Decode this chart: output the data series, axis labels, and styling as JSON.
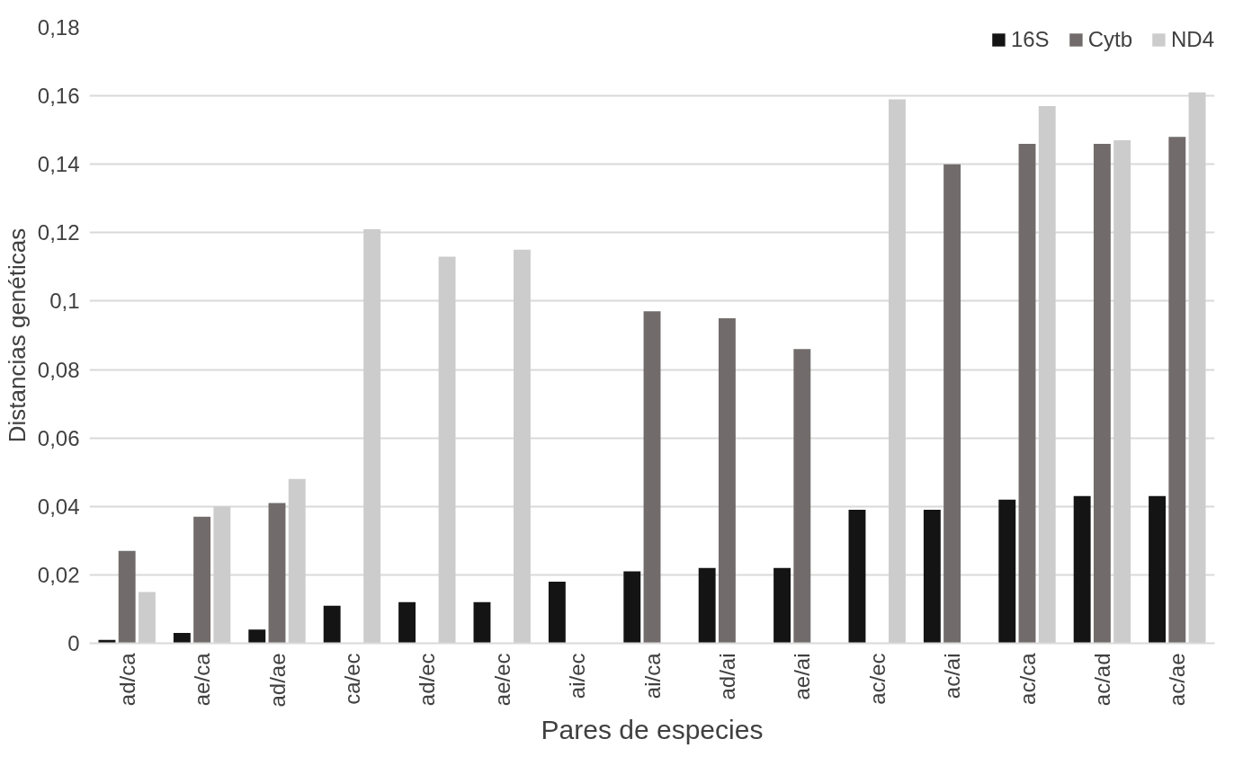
{
  "chart_data": {
    "type": "bar",
    "xlabel": "Pares de especies",
    "ylabel": "Distancias genéticas",
    "categories": [
      "ad/ca",
      "ae/ca",
      "ad/ae",
      "ca/ec",
      "ad/ec",
      "ae/ec",
      "ai/ec",
      "ai/ca",
      "ad/ai",
      "ae/ai",
      "ac/ec",
      "ac/ai",
      "ac/ca",
      "ac/ad",
      "ac/ae"
    ],
    "series": [
      {
        "name": "16S",
        "color": "#141414",
        "values": [
          0.001,
          0.003,
          0.004,
          0.011,
          0.012,
          0.012,
          0.018,
          0.021,
          0.022,
          0.022,
          0.039,
          0.039,
          0.042,
          0.043,
          0.043
        ]
      },
      {
        "name": "Cytb",
        "color": "#716c6b",
        "values": [
          0.027,
          0.037,
          0.041,
          null,
          null,
          null,
          null,
          0.097,
          0.095,
          0.086,
          null,
          0.14,
          0.146,
          0.146,
          0.148
        ]
      },
      {
        "name": "ND4",
        "color": "#cccccc",
        "values": [
          0.015,
          0.04,
          0.048,
          0.121,
          0.113,
          0.115,
          null,
          null,
          null,
          null,
          0.159,
          null,
          0.157,
          0.147,
          0.161
        ]
      }
    ],
    "ylim": [
      0,
      0.18
    ],
    "yticks": [
      0,
      {
        "value": 0.02,
        "label": "0,02"
      },
      {
        "value": 0.04,
        "label": "0,04"
      },
      {
        "value": 0.06,
        "label": "0,06"
      },
      {
        "value": 0.08,
        "label": "0,08"
      },
      {
        "value": 0.1,
        "label": "0,1"
      },
      {
        "value": 0.12,
        "label": "0,12"
      },
      {
        "value": 0.14,
        "label": "0,14"
      },
      {
        "value": 0.16,
        "label": "0,16"
      },
      {
        "value": 0.18,
        "label": "0,18"
      }
    ],
    "grid": "y",
    "legend": "top right"
  }
}
